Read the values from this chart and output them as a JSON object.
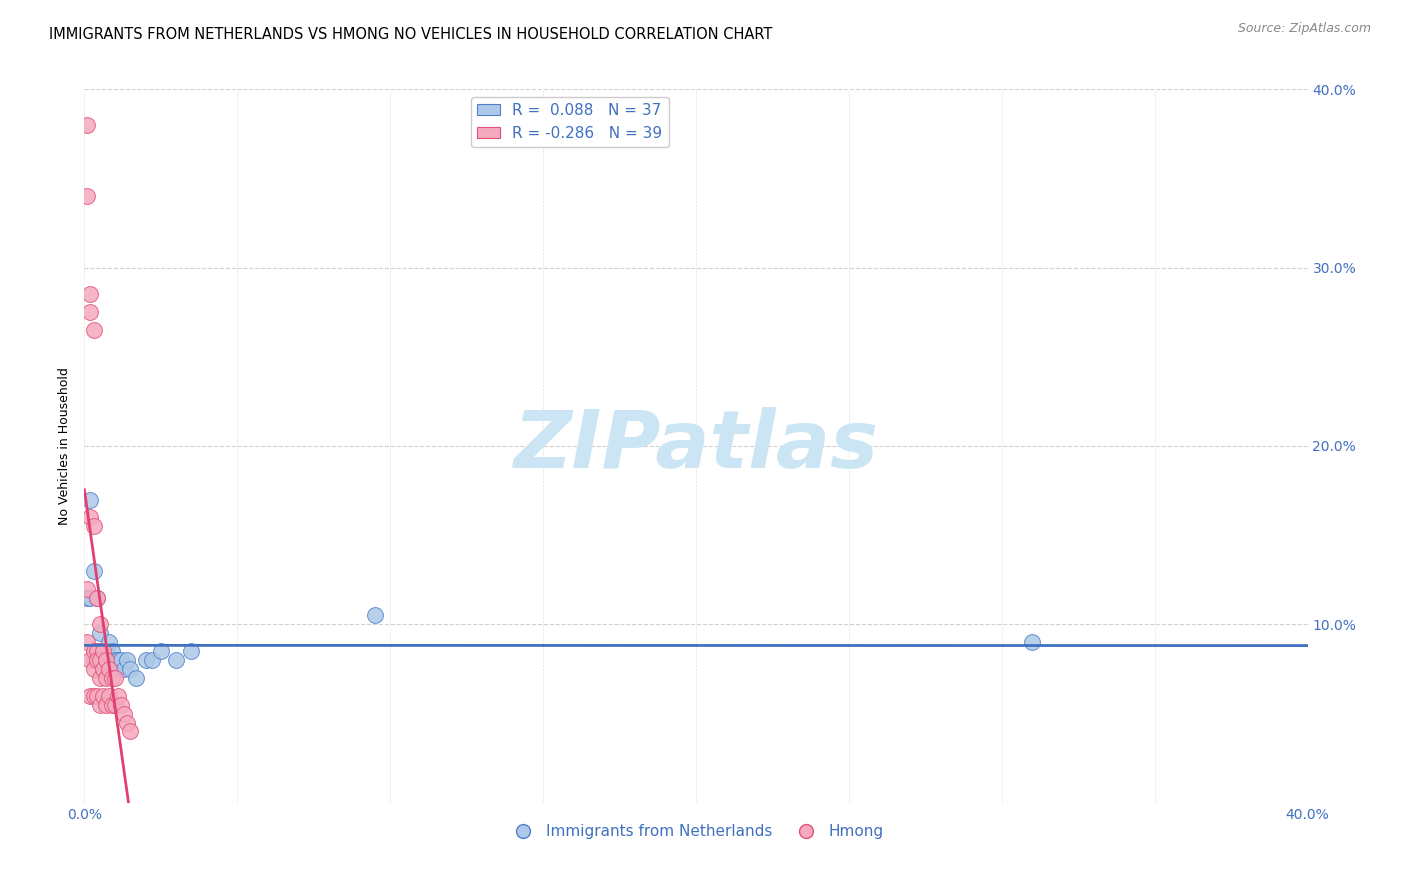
{
  "title": "IMMIGRANTS FROM NETHERLANDS VS HMONG NO VEHICLES IN HOUSEHOLD CORRELATION CHART",
  "source": "Source: ZipAtlas.com",
  "ylabel": "No Vehicles in Household",
  "xlim": [
    0.0,
    0.4
  ],
  "ylim": [
    0.0,
    0.4
  ],
  "xticks": [
    0.0,
    0.05,
    0.1,
    0.15,
    0.2,
    0.25,
    0.3,
    0.35,
    0.4
  ],
  "xtick_labels_show": [
    "0.0%",
    "",
    "",
    "",
    "",
    "",
    "",
    "",
    "40.0%"
  ],
  "yticks": [
    0.1,
    0.2,
    0.3,
    0.4
  ],
  "ytick_labels": [
    "10.0%",
    "20.0%",
    "30.0%",
    "40.0%"
  ],
  "blue_R": 0.088,
  "blue_N": 37,
  "pink_R": -0.286,
  "pink_N": 39,
  "blue_color": "#adc8e8",
  "pink_color": "#f5aabf",
  "blue_edge_color": "#5080c8",
  "pink_edge_color": "#e05075",
  "blue_line_color": "#4070c0",
  "pink_line_color": "#e04070",
  "label_color": "#4070c0",
  "watermark_color": "#cce5f5",
  "blue_scatter_x": [
    0.001,
    0.002,
    0.002,
    0.003,
    0.003,
    0.003,
    0.004,
    0.004,
    0.004,
    0.005,
    0.005,
    0.005,
    0.006,
    0.006,
    0.006,
    0.007,
    0.007,
    0.008,
    0.008,
    0.008,
    0.009,
    0.009,
    0.01,
    0.01,
    0.011,
    0.012,
    0.013,
    0.014,
    0.015,
    0.017,
    0.02,
    0.022,
    0.025,
    0.03,
    0.035,
    0.095,
    0.31
  ],
  "blue_scatter_y": [
    0.115,
    0.17,
    0.115,
    0.13,
    0.085,
    0.08,
    0.115,
    0.085,
    0.085,
    0.095,
    0.085,
    0.08,
    0.085,
    0.08,
    0.075,
    0.085,
    0.075,
    0.09,
    0.08,
    0.075,
    0.085,
    0.075,
    0.08,
    0.075,
    0.08,
    0.08,
    0.075,
    0.08,
    0.075,
    0.07,
    0.08,
    0.08,
    0.085,
    0.08,
    0.085,
    0.105,
    0.09
  ],
  "pink_scatter_x": [
    0.001,
    0.001,
    0.001,
    0.001,
    0.002,
    0.002,
    0.002,
    0.002,
    0.002,
    0.003,
    0.003,
    0.003,
    0.003,
    0.003,
    0.004,
    0.004,
    0.004,
    0.004,
    0.005,
    0.005,
    0.005,
    0.005,
    0.006,
    0.006,
    0.006,
    0.007,
    0.007,
    0.007,
    0.008,
    0.008,
    0.009,
    0.009,
    0.01,
    0.01,
    0.011,
    0.012,
    0.013,
    0.014,
    0.015
  ],
  "pink_scatter_y": [
    0.38,
    0.34,
    0.12,
    0.09,
    0.285,
    0.275,
    0.16,
    0.08,
    0.06,
    0.265,
    0.155,
    0.085,
    0.075,
    0.06,
    0.115,
    0.085,
    0.08,
    0.06,
    0.1,
    0.08,
    0.07,
    0.055,
    0.085,
    0.075,
    0.06,
    0.08,
    0.07,
    0.055,
    0.075,
    0.06,
    0.07,
    0.055,
    0.07,
    0.055,
    0.06,
    0.055,
    0.05,
    0.045,
    0.04
  ],
  "title_fontsize": 10.5,
  "axis_label_fontsize": 9,
  "tick_fontsize": 10,
  "legend_fontsize": 11,
  "source_fontsize": 9
}
